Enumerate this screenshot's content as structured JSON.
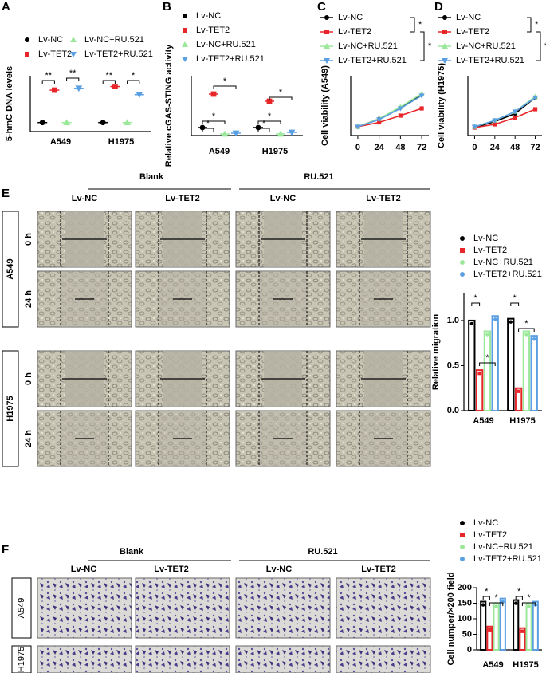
{
  "figure": {
    "panel_labels": [
      "A",
      "B",
      "C",
      "D",
      "E",
      "F"
    ],
    "grid_e": {
      "groups": [
        "Blank",
        "RU.521"
      ],
      "columns": [
        "Lv-NC",
        "Lv-TET2",
        "Lv-NC",
        "Lv-TET2"
      ],
      "rows": [
        "A549",
        "H1975"
      ],
      "times": [
        "0 h",
        "24 h"
      ]
    },
    "grid_f": {
      "groups": [
        "Blank",
        "RU.521"
      ],
      "columns": [
        "Lv-NC",
        "Lv-TET2",
        "Lv-NC",
        "Lv-TET2"
      ],
      "rows": [
        "A549",
        "H1975"
      ]
    }
  },
  "chart_data": [
    {
      "type": "dotplot",
      "y_label": "5-hmC DNA levels",
      "categories": [
        "A549",
        "H1975"
      ],
      "ylim": [
        0,
        6.2
      ],
      "series": [
        {
          "name": "Lv-NC",
          "color": "#000000",
          "marker": "circle",
          "values": [
            1.0,
            1.0
          ]
        },
        {
          "name": "Lv-TET2",
          "color": "#e8262a",
          "marker": "square",
          "values": [
            4.6,
            5.0
          ]
        },
        {
          "name": "Lv-NC+RU.521",
          "color": "#9be89b",
          "marker": "triangle-up",
          "values": [
            1.0,
            1.0
          ]
        },
        {
          "name": "Lv-TET2+RU.521",
          "color": "#5b9fe3",
          "marker": "triangle-down",
          "values": [
            4.8,
            4.1
          ]
        }
      ],
      "annotations": [
        "**",
        "**",
        "**",
        "*"
      ]
    },
    {
      "type": "dotplot",
      "y_label": "Relative cGAS-STING activity",
      "categories": [
        "A549",
        "H1975"
      ],
      "ylim": [
        0,
        7.5
      ],
      "series": [
        {
          "name": "Lv-NC",
          "color": "#000000",
          "marker": "circle",
          "values": [
            1.0,
            1.0
          ]
        },
        {
          "name": "Lv-TET2",
          "color": "#e8262a",
          "marker": "square",
          "values": [
            5.2,
            4.3
          ]
        },
        {
          "name": "Lv-NC+RU.521",
          "color": "#9be89b",
          "marker": "triangle-up",
          "values": [
            0.2,
            0.2
          ]
        },
        {
          "name": "Lv-TET2+RU.521",
          "color": "#5b9fe3",
          "marker": "triangle-down",
          "values": [
            0.3,
            0.4
          ]
        }
      ],
      "annotations": [
        "*",
        "*",
        "*",
        "*",
        "*",
        "*"
      ]
    },
    {
      "type": "line",
      "y_label": "Cell viability (A549)",
      "x": [
        0,
        24,
        48,
        72
      ],
      "xlim": [
        -8,
        80
      ],
      "xticks": [
        0,
        24,
        48,
        72
      ],
      "ylim": [
        0,
        1.5
      ],
      "series": [
        {
          "name": "Lv-NC",
          "color": "#000000",
          "marker": "circle",
          "values": [
            0.22,
            0.42,
            0.7,
            1.02
          ]
        },
        {
          "name": "Lv-TET2",
          "color": "#e8262a",
          "marker": "square",
          "values": [
            0.22,
            0.33,
            0.5,
            0.68
          ]
        },
        {
          "name": "Lv-NC+RU.521",
          "color": "#9be89b",
          "marker": "triangle-up",
          "values": [
            0.22,
            0.42,
            0.72,
            1.05
          ]
        },
        {
          "name": "Lv-TET2+RU.521",
          "color": "#5b9fe3",
          "marker": "triangle-down",
          "values": [
            0.22,
            0.4,
            0.68,
            1.0
          ]
        }
      ],
      "annotations": [
        "*",
        "*"
      ]
    },
    {
      "type": "line",
      "y_label": "Cell viability (H1975)",
      "x": [
        0,
        24,
        48,
        72
      ],
      "xlim": [
        -8,
        80
      ],
      "xticks": [
        0,
        24,
        48,
        72
      ],
      "ylim": [
        0,
        1.5
      ],
      "series": [
        {
          "name": "Lv-NC",
          "color": "#000000",
          "marker": "circle",
          "values": [
            0.2,
            0.35,
            0.55,
            0.95
          ]
        },
        {
          "name": "Lv-TET2",
          "color": "#e8262a",
          "marker": "square",
          "values": [
            0.2,
            0.28,
            0.45,
            0.66
          ]
        },
        {
          "name": "Lv-NC+RU.521",
          "color": "#9be89b",
          "marker": "triangle-up",
          "values": [
            0.22,
            0.38,
            0.6,
            0.98
          ]
        },
        {
          "name": "Lv-TET2+RU.521",
          "color": "#5b9fe3",
          "marker": "triangle-down",
          "values": [
            0.22,
            0.38,
            0.6,
            0.95
          ]
        }
      ],
      "annotations": [
        "*",
        "*"
      ]
    },
    {
      "type": "bar",
      "y_label": "Relative migration",
      "categories": [
        "A549",
        "H1975"
      ],
      "ylim": [
        0,
        1.3
      ],
      "yticks": [
        {
          "value": 0,
          "label": "0.0"
        },
        0.5,
        {
          "value": 1,
          "label": "1.0"
        }
      ],
      "series": [
        {
          "name": "Lv-NC",
          "color": "#000000",
          "marker": "circle",
          "values": [
            1.0,
            1.02
          ]
        },
        {
          "name": "Lv-TET2",
          "color": "#e8262a",
          "marker": "square",
          "values": [
            0.45,
            0.25
          ]
        },
        {
          "name": "Lv-NC+RU.521",
          "color": "#9be89b",
          "marker": "circle",
          "values": [
            0.88,
            0.88
          ]
        },
        {
          "name": "Lv-TET2+RU.521",
          "color": "#5b9fe3",
          "marker": "circle",
          "values": [
            1.05,
            0.83
          ]
        }
      ],
      "annotations": [
        "*",
        "*",
        "*",
        "*"
      ]
    },
    {
      "type": "bar",
      "y_label": "Cell numper/×200 field",
      "categories": [
        "A549",
        "H1975"
      ],
      "ylim": [
        0,
        200
      ],
      "yticks": [
        0,
        50,
        100,
        150,
        200
      ],
      "series": [
        {
          "name": "Lv-NC",
          "color": "#000000",
          "marker": "circle",
          "values": [
            155,
            160
          ]
        },
        {
          "name": "Lv-TET2",
          "color": "#e8262a",
          "marker": "square",
          "values": [
            75,
            70
          ]
        },
        {
          "name": "Lv-NC+RU.521",
          "color": "#9be89b",
          "marker": "circle",
          "values": [
            150,
            150
          ]
        },
        {
          "name": "Lv-TET2+RU.521",
          "color": "#5b9fe3",
          "marker": "circle",
          "values": [
            165,
            155
          ]
        }
      ],
      "annotations": [
        "*",
        "*",
        "*",
        "*"
      ]
    }
  ]
}
